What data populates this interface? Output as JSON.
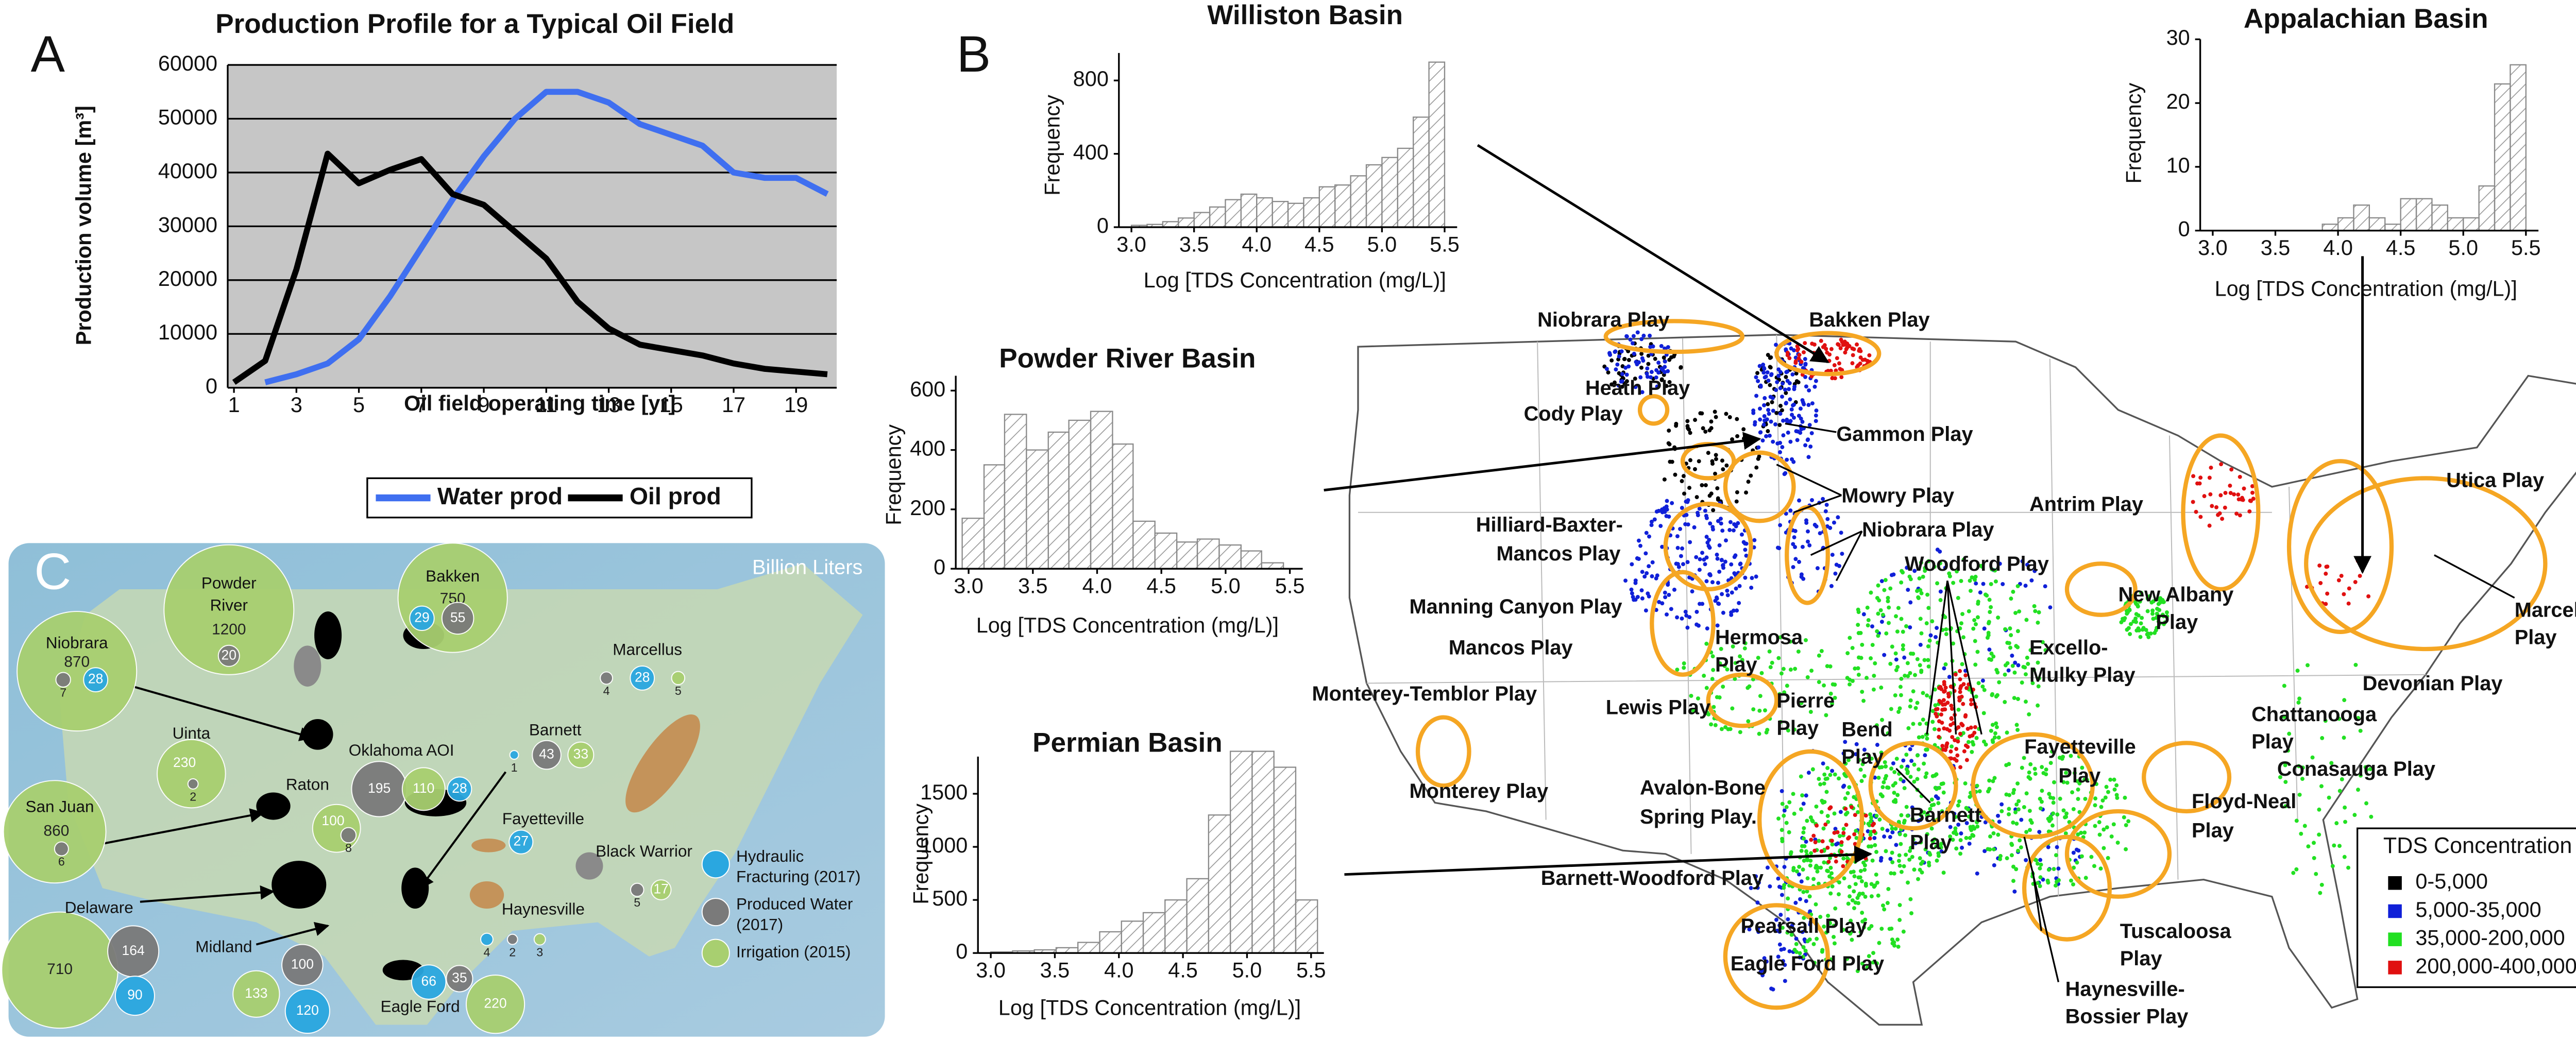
{
  "panel_labels": [
    "A",
    "B",
    "C"
  ],
  "chart_data": [
    {
      "type": "line",
      "title": "Production Profile for a Typical Oil Field",
      "xlabel": "Oil field operating time [yr]",
      "ylabel": "Production volume [m³]",
      "x": [
        1,
        2,
        3,
        4,
        5,
        6,
        7,
        8,
        9,
        10,
        11,
        12,
        13,
        14,
        15,
        16,
        17,
        18,
        19,
        20
      ],
      "series": [
        {
          "name": "Water prod",
          "color": "#3f6ff0",
          "values": [
            null,
            1000,
            2500,
            4500,
            9000,
            17000,
            26000,
            35000,
            43000,
            50000,
            55000,
            55000,
            53000,
            49000,
            47000,
            45000,
            40000,
            39000,
            39000,
            36000
          ]
        },
        {
          "name": "Oil prod",
          "color": "#000000",
          "values": [
            1000,
            5000,
            22000,
            43500,
            38000,
            40500,
            42500,
            36000,
            34000,
            29000,
            24000,
            16000,
            11000,
            8000,
            7000,
            6000,
            4500,
            3500,
            3000,
            2500
          ]
        }
      ],
      "xlim": [
        0.8,
        20.3
      ],
      "xticks": [
        1,
        3,
        5,
        7,
        9,
        11,
        13,
        15,
        17,
        19
      ],
      "ylim": [
        0,
        60000
      ],
      "yticks": [
        0,
        10000,
        20000,
        30000,
        40000,
        50000,
        60000
      ],
      "grid": true,
      "background": "#c6c6c6",
      "legend": "bottom"
    },
    {
      "type": "histogram",
      "title": "Williston Basin",
      "xlabel": "Log [TDS Concentration (mg/L)]",
      "ylabel": "Frequency",
      "color": "#8a8a8a",
      "bins": [
        3.0,
        3.125,
        3.25,
        3.375,
        3.5,
        3.625,
        3.75,
        3.875,
        4.0,
        4.125,
        4.25,
        4.375,
        4.5,
        4.625,
        4.75,
        4.875,
        5.0,
        5.125,
        5.25,
        5.375,
        5.5
      ],
      "counts": [
        10,
        15,
        30,
        50,
        80,
        110,
        150,
        180,
        160,
        140,
        130,
        160,
        220,
        230,
        280,
        340,
        380,
        430,
        600,
        900
      ],
      "xlim": [
        2.9,
        5.6
      ],
      "xticks": [
        {
          "value": 3,
          "label": "3.0"
        },
        3.5,
        {
          "value": 4,
          "label": "4.0"
        },
        4.5,
        {
          "value": 5,
          "label": "5.0"
        },
        5.5
      ],
      "ylim": [
        0,
        950
      ],
      "yticks": [
        0,
        400,
        800
      ]
    },
    {
      "type": "histogram",
      "title": "Appalachian Basin",
      "xlabel": "Log [TDS Concentration (mg/L)]",
      "ylabel": "Frequency",
      "color": "#8a8a8a",
      "bins": [
        3.0,
        3.125,
        3.25,
        3.375,
        3.5,
        3.625,
        3.75,
        3.875,
        4.0,
        4.125,
        4.25,
        4.375,
        4.5,
        4.625,
        4.75,
        4.875,
        5.0,
        5.125,
        5.25,
        5.375,
        5.5
      ],
      "counts": [
        0,
        0,
        0,
        0,
        0,
        0,
        0,
        1,
        2,
        4,
        2,
        1,
        5,
        5,
        4,
        2,
        2,
        7,
        23,
        26
      ],
      "xlim": [
        2.9,
        5.6
      ],
      "xticks": [
        {
          "value": 3,
          "label": "3.0"
        },
        3.5,
        {
          "value": 4,
          "label": "4.0"
        },
        4.5,
        {
          "value": 5,
          "label": "5.0"
        },
        5.5
      ],
      "ylim": [
        0,
        30
      ],
      "yticks": [
        0,
        10,
        20,
        30
      ]
    },
    {
      "type": "histogram",
      "title": "Powder River Basin",
      "xlabel": "Log [TDS Concentration (mg/L)]",
      "ylabel": "Frequency",
      "color": "#8a8a8a",
      "bins": [
        2.95,
        3.12,
        3.28,
        3.45,
        3.62,
        3.78,
        3.95,
        4.12,
        4.28,
        4.45,
        4.62,
        4.78,
        4.95,
        5.12,
        5.28,
        5.45
      ],
      "counts": [
        170,
        350,
        520,
        400,
        460,
        500,
        530,
        420,
        160,
        120,
        90,
        100,
        80,
        60,
        20
      ],
      "xlim": [
        2.9,
        5.6
      ],
      "xticks": [
        {
          "value": 3,
          "label": "3.0"
        },
        3.5,
        {
          "value": 4,
          "label": "4.0"
        },
        4.5,
        {
          "value": 5,
          "label": "5.0"
        },
        5.5
      ],
      "ylim": [
        0,
        650
      ],
      "yticks": [
        0,
        200,
        400,
        600
      ]
    },
    {
      "type": "histogram",
      "title": "Permian Basin",
      "xlabel": "Log [TDS Concentration (mg/L)]",
      "ylabel": "Frequency",
      "color": "#8a8a8a",
      "bins": [
        3.0,
        3.17,
        3.34,
        3.51,
        3.68,
        3.85,
        4.02,
        4.19,
        4.36,
        4.53,
        4.7,
        4.87,
        5.04,
        5.21,
        5.38,
        5.55
      ],
      "counts": [
        10,
        20,
        30,
        50,
        100,
        200,
        300,
        380,
        500,
        700,
        1300,
        1900,
        1900,
        1750,
        500
      ],
      "xlim": [
        2.9,
        5.6
      ],
      "xticks": [
        {
          "value": 3,
          "label": "3.0"
        },
        3.5,
        {
          "value": 4,
          "label": "4.0"
        },
        4.5,
        {
          "value": 5,
          "label": "5.0"
        },
        5.5
      ],
      "ylim": [
        0,
        1850
      ],
      "yticks": [
        0,
        500,
        1000,
        1500
      ]
    }
  ],
  "map_b": {
    "labels": [
      [
        "Niobrara Play"
      ],
      [
        "Bakken Play"
      ],
      [
        "Heath Play"
      ],
      [
        "Cody Play"
      ],
      [
        "Gammon Play"
      ],
      [
        "Mowry Play"
      ],
      [
        "Antrim Play"
      ],
      [
        "Utica Play"
      ],
      [
        "Hilliard-Baxter-",
        "Mancos Play"
      ],
      [
        "Niobrara Play"
      ],
      [
        "Woodford Play"
      ],
      [
        "Manning Canyon Play"
      ],
      [
        "New Albany",
        "Play"
      ],
      [
        "Marcellus",
        "Play"
      ],
      [
        "Mancos Play"
      ],
      [
        "Hermosa",
        "Play"
      ],
      [
        "Excello-",
        "Mulky Play"
      ],
      [
        "Devonian Play"
      ],
      [
        "Monterey-Temblor Play"
      ],
      [
        "Lewis Play"
      ],
      [
        "Pierre",
        "Play"
      ],
      [
        "Chattanooga",
        "Play"
      ],
      [
        "Bend",
        "Play"
      ],
      [
        "Fayetteville",
        "Play"
      ],
      [
        "Conasauga Play"
      ],
      [
        "Monterey Play"
      ],
      [
        "Avalon-Bone",
        "Spring Play."
      ],
      [
        "Barnett",
        "Play"
      ],
      [
        "Floyd-Neal",
        "Play"
      ],
      [
        "Barnett-Woodford Play"
      ],
      [
        "Pearsall Play"
      ],
      [
        "Tuscaloosa",
        "Play"
      ],
      [
        "Eagle Ford Play"
      ],
      [
        "Haynesville-",
        "Bossier Play"
      ]
    ],
    "legend": {
      "title": "TDS Concentration (mg/L)",
      "entries": [
        {
          "label": "0-5,000",
          "color": "#000000"
        },
        {
          "label": "5,000-35,000",
          "color": "#1020d8"
        },
        {
          "label": "35,000-200,000",
          "color": "#22e022"
        },
        {
          "label": "200,000-400,000",
          "color": "#e01010"
        }
      ]
    },
    "outline_color": "#f5a623"
  },
  "map_c": {
    "title": "Billion Liters",
    "sites": [
      {
        "name": [
          "Niobrara"
        ],
        "bubbles": [
          {
            "value": 870,
            "color": "#a8cf70"
          },
          {
            "value": 7,
            "color": "#7a7a7a"
          },
          {
            "value": 28,
            "color": "#2aa7e0"
          }
        ]
      },
      {
        "name": [
          "Powder",
          "River"
        ],
        "bubbles": [
          {
            "value": 1200,
            "color": "#a8cf70"
          },
          {
            "value": 20,
            "color": "#7a7a7a"
          }
        ]
      },
      {
        "name": [
          "Bakken"
        ],
        "bubbles": [
          {
            "value": 750,
            "color": "#a8cf70"
          },
          {
            "value": 29,
            "color": "#2aa7e0"
          },
          {
            "value": 55,
            "color": "#7a7a7a"
          }
        ]
      },
      {
        "name": [
          "Uinta"
        ],
        "bubbles": [
          {
            "value": 230,
            "color": "#a8cf70"
          },
          {
            "value": 2,
            "color": "#7a7a7a"
          }
        ]
      },
      {
        "name": [
          "San Juan"
        ],
        "bubbles": [
          {
            "value": 860,
            "color": "#a8cf70"
          },
          {
            "value": 6,
            "color": "#7a7a7a"
          }
        ]
      },
      {
        "name": [
          "Raton"
        ],
        "bubbles": [
          {
            "value": 100,
            "color": "#a8cf70"
          },
          {
            "value": 8,
            "color": "#7a7a7a"
          }
        ]
      },
      {
        "name": [
          "Oklahoma AOI"
        ],
        "bubbles": [
          {
            "value": 195,
            "color": "#7a7a7a"
          },
          {
            "value": 110,
            "color": "#a8cf70"
          },
          {
            "value": 28,
            "color": "#2aa7e0"
          }
        ]
      },
      {
        "name": [
          "Barnett"
        ],
        "bubbles": [
          {
            "value": 1,
            "color": "#2aa7e0"
          },
          {
            "value": 43,
            "color": "#7a7a7a"
          },
          {
            "value": 33,
            "color": "#a8cf70"
          }
        ]
      },
      {
        "name": [
          "Fayetteville"
        ],
        "bubbles": [
          {
            "value": 27,
            "color": "#2aa7e0"
          }
        ]
      },
      {
        "name": [
          "Black Warrior"
        ],
        "bubbles": [
          {
            "value": 5,
            "color": "#7a7a7a"
          },
          {
            "value": 17,
            "color": "#a8cf70"
          }
        ]
      },
      {
        "name": [
          "Haynesville"
        ],
        "bubbles": [
          {
            "value": 4,
            "color": "#2aa7e0"
          },
          {
            "value": 2,
            "color": "#7a7a7a"
          },
          {
            "value": 3,
            "color": "#a8cf70"
          }
        ]
      },
      {
        "name": [
          "Marcellus"
        ],
        "bubbles": [
          {
            "value": 4,
            "color": "#7a7a7a"
          },
          {
            "value": 28,
            "color": "#2aa7e0"
          },
          {
            "value": 5,
            "color": "#a8cf70"
          }
        ]
      },
      {
        "name": [
          "Delaware"
        ],
        "bubbles": [
          {
            "value": 710,
            "color": "#a8cf70"
          },
          {
            "value": 164,
            "color": "#7a7a7a"
          },
          {
            "value": 90,
            "color": "#2aa7e0"
          }
        ]
      },
      {
        "name": [
          "Midland"
        ],
        "bubbles": [
          {
            "value": 133,
            "color": "#a8cf70"
          },
          {
            "value": 100,
            "color": "#7a7a7a"
          },
          {
            "value": 120,
            "color": "#2aa7e0"
          }
        ]
      },
      {
        "name": [
          "Eagle Ford"
        ],
        "bubbles": [
          {
            "value": 66,
            "color": "#2aa7e0"
          },
          {
            "value": 35,
            "color": "#7a7a7a"
          },
          {
            "value": 220,
            "color": "#a8cf70"
          }
        ]
      }
    ],
    "legend": [
      {
        "lines": [
          "Hydraulic",
          "Fracturing (2017)"
        ],
        "color": "#2aa7e0"
      },
      {
        "lines": [
          "Produced Water",
          "(2017)"
        ],
        "color": "#7a7a7a"
      },
      {
        "lines": [
          "Irrigation (2015)"
        ],
        "color": "#a8cf70"
      }
    ]
  }
}
